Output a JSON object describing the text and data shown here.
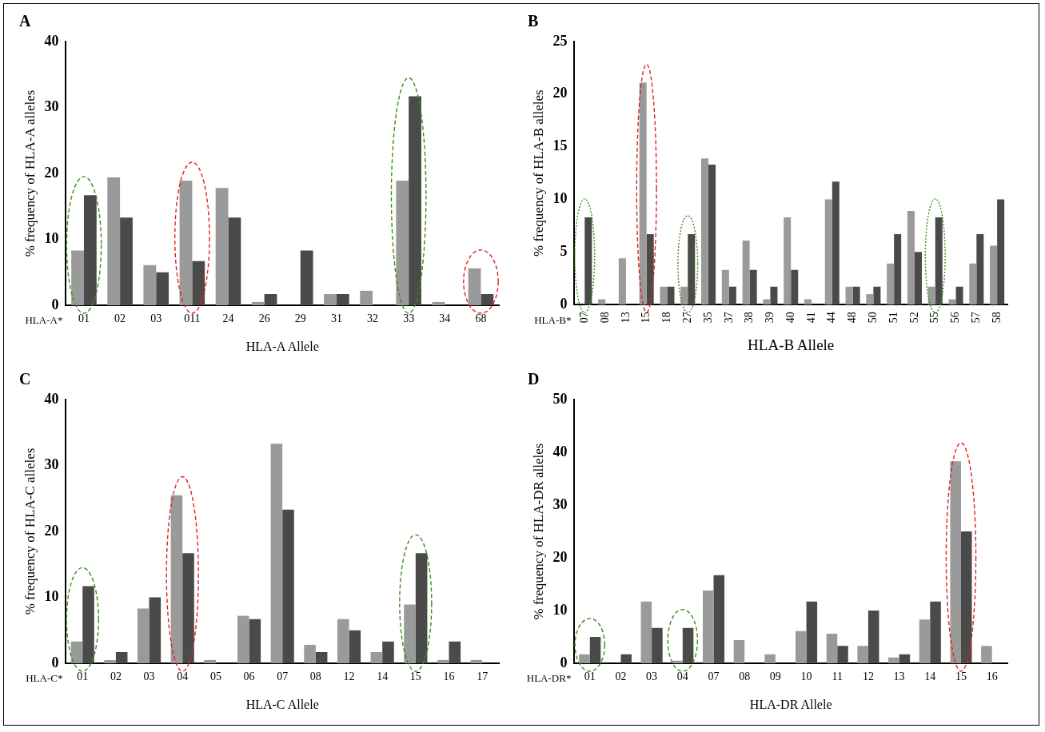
{
  "chart_data": [
    {
      "type": "bar",
      "title": "A",
      "xlabel": "HLA-A Allele",
      "ylabel": "% frequency of HLA-A alleles",
      "annotations": [
        "HLA-A*"
      ],
      "categories": [
        "01",
        "02",
        "03",
        "011",
        "24",
        "26",
        "29",
        "31",
        "32",
        "33",
        "34",
        "68"
      ],
      "series": [
        {
          "color": "#9a9a9a",
          "values": [
            8.3,
            19.4,
            6.1,
            18.9,
            17.8,
            0.5,
            0,
            1.7,
            2.2,
            18.9,
            0.5,
            5.6
          ]
        },
        {
          "color": "#4a4a4a",
          "values": [
            16.7,
            13.3,
            5.0,
            6.7,
            13.3,
            1.7,
            8.3,
            1.7,
            0,
            31.7,
            0,
            1.7
          ]
        }
      ],
      "ylim": [
        0,
        40
      ],
      "yticks": [
        0,
        10,
        20,
        30,
        40
      ],
      "grid": false,
      "legend": false
    },
    {
      "type": "bar",
      "title": "B",
      "xlabel": "HLA-B Allele",
      "ylabel": "% frequency of HLA-B alleles",
      "annotations": [
        "HLA-B*"
      ],
      "categories": [
        "07",
        "08",
        "13",
        "15",
        "18",
        "27",
        "35",
        "37",
        "38",
        "39",
        "40",
        "41",
        "44",
        "48",
        "50",
        "51",
        "52",
        "55",
        "56",
        "57",
        "58"
      ],
      "series": [
        {
          "color": "#9a9a9a",
          "values": [
            0,
            0.5,
            4.4,
            21.1,
            1.7,
            1.7,
            13.9,
            3.3,
            6.1,
            0.5,
            8.3,
            0.5,
            10.0,
            1.7,
            1.0,
            3.9,
            8.9,
            1.7,
            0.5,
            3.9,
            5.6
          ]
        },
        {
          "color": "#4a4a4a",
          "values": [
            8.3,
            0,
            0,
            6.7,
            1.7,
            6.7,
            13.3,
            1.7,
            3.3,
            1.7,
            3.3,
            0,
            11.7,
            1.7,
            1.7,
            6.7,
            5.0,
            8.3,
            1.7,
            6.7,
            10.0
          ]
        }
      ],
      "ylim": [
        0,
        25
      ],
      "yticks": [
        0,
        5,
        10,
        15,
        20,
        25
      ],
      "grid": false,
      "legend": false
    },
    {
      "type": "bar",
      "title": "C",
      "xlabel": "HLA-C Allele",
      "ylabel": "% frequency of HLA-C alleles",
      "annotations": [
        "HLA-C*"
      ],
      "categories": [
        "01",
        "02",
        "03",
        "04",
        "05",
        "06",
        "07",
        "08",
        "12",
        "14",
        "15",
        "16",
        "17"
      ],
      "series": [
        {
          "color": "#9a9a9a",
          "values": [
            3.3,
            0.5,
            8.3,
            25.5,
            0.5,
            7.2,
            33.3,
            2.8,
            6.7,
            1.7,
            8.9,
            0.5,
            0.5
          ]
        },
        {
          "color": "#4a4a4a",
          "values": [
            11.7,
            1.7,
            10.0,
            16.7,
            0,
            6.7,
            23.3,
            1.7,
            5.0,
            3.3,
            16.7,
            3.3,
            0
          ]
        }
      ],
      "ylim": [
        0,
        40
      ],
      "yticks": [
        0,
        10,
        20,
        30,
        40
      ],
      "grid": false,
      "legend": false
    },
    {
      "type": "bar",
      "title": "D",
      "xlabel": "HLA-DR Allele",
      "ylabel": "% frequency of HLA-DR alleles",
      "annotations": [
        "HLA-DR*"
      ],
      "categories": [
        "01",
        "02",
        "03",
        "04",
        "07",
        "08",
        "09",
        "10",
        "11",
        "12",
        "13",
        "14",
        "15",
        "16"
      ],
      "series": [
        {
          "color": "#9a9a9a",
          "values": [
            1.7,
            0,
            11.7,
            0.5,
            13.8,
            4.4,
            1.7,
            6.1,
            5.6,
            3.3,
            1.1,
            8.3,
            38.3,
            3.3
          ]
        },
        {
          "color": "#4a4a4a",
          "values": [
            5.0,
            1.7,
            6.7,
            6.7,
            16.7,
            0,
            0,
            11.7,
            3.3,
            10.0,
            1.7,
            11.7,
            25.0,
            0
          ]
        }
      ],
      "ylim": [
        0,
        50
      ],
      "yticks": [
        0,
        10,
        20,
        30,
        40,
        50
      ],
      "grid": false,
      "legend": false
    }
  ]
}
